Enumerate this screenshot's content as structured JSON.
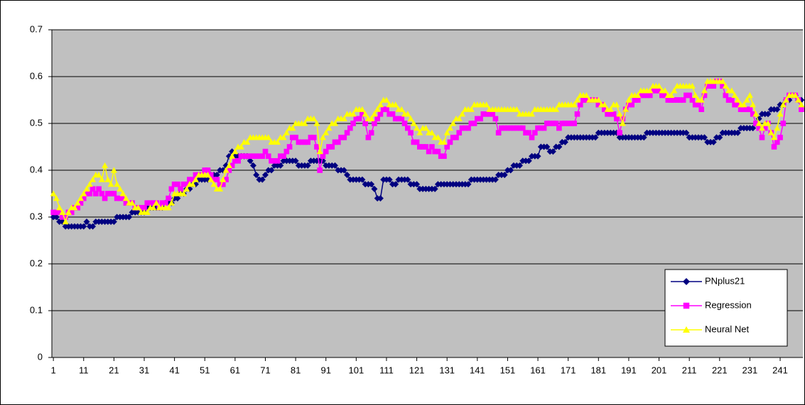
{
  "chart_data": {
    "type": "line",
    "x": [
      1,
      2,
      3,
      4,
      5,
      6,
      7,
      8,
      9,
      10,
      11,
      12,
      13,
      14,
      15,
      16,
      17,
      18,
      19,
      20,
      21,
      22,
      23,
      24,
      25,
      26,
      27,
      28,
      29,
      30,
      31,
      32,
      33,
      34,
      35,
      36,
      37,
      38,
      39,
      40,
      41,
      42,
      43,
      44,
      45,
      46,
      47,
      48,
      49,
      50,
      51,
      52,
      53,
      54,
      55,
      56,
      57,
      58,
      59,
      60,
      61,
      62,
      63,
      64,
      65,
      66,
      67,
      68,
      69,
      70,
      71,
      72,
      73,
      74,
      75,
      76,
      77,
      78,
      79,
      80,
      81,
      82,
      83,
      84,
      85,
      86,
      87,
      88,
      89,
      90,
      91,
      92,
      93,
      94,
      95,
      96,
      97,
      98,
      99,
      100,
      101,
      102,
      103,
      104,
      105,
      106,
      107,
      108,
      109,
      110,
      111,
      112,
      113,
      114,
      115,
      116,
      117,
      118,
      119,
      120,
      121,
      122,
      123,
      124,
      125,
      126,
      127,
      128,
      129,
      130,
      131,
      132,
      133,
      134,
      135,
      136,
      137,
      138,
      139,
      140,
      141,
      142,
      143,
      144,
      145,
      146,
      147,
      148,
      149,
      150,
      151,
      152,
      153,
      154,
      155,
      156,
      157,
      158,
      159,
      160,
      161,
      162,
      163,
      164,
      165,
      166,
      167,
      168,
      169,
      170,
      171,
      172,
      173,
      174,
      175,
      176,
      177,
      178,
      179,
      180,
      181,
      182,
      183,
      184,
      185,
      186,
      187,
      188,
      189,
      190,
      191,
      192,
      193,
      194,
      195,
      196,
      197,
      198,
      199,
      200,
      201,
      202,
      203,
      204,
      205,
      206,
      207,
      208,
      209,
      210,
      211,
      212,
      213,
      214,
      215,
      216,
      217,
      218,
      219,
      220,
      221,
      222,
      223,
      224,
      225,
      226,
      227,
      228,
      229,
      230,
      231,
      232,
      233,
      234,
      235,
      236,
      237,
      238,
      239,
      240,
      241,
      242,
      243,
      244,
      245,
      246,
      247,
      248
    ],
    "xlim": [
      0.5,
      248.5
    ],
    "xticks": [
      1,
      11,
      21,
      31,
      41,
      51,
      61,
      71,
      81,
      91,
      101,
      111,
      121,
      131,
      141,
      151,
      161,
      171,
      181,
      191,
      201,
      211,
      221,
      231,
      241
    ],
    "ylim": [
      0,
      0.7
    ],
    "yticks": [
      0,
      0.1,
      0.2,
      0.3,
      0.4,
      0.5,
      0.6,
      0.7
    ],
    "grid": true,
    "legend": "lower right",
    "series": [
      {
        "name": "PNplus21",
        "color": "#000080",
        "marker": "diamond",
        "values": [
          0.3,
          0.3,
          0.29,
          0.29,
          0.28,
          0.28,
          0.28,
          0.28,
          0.28,
          0.28,
          0.28,
          0.29,
          0.28,
          0.28,
          0.29,
          0.29,
          0.29,
          0.29,
          0.29,
          0.29,
          0.29,
          0.3,
          0.3,
          0.3,
          0.3,
          0.3,
          0.31,
          0.31,
          0.31,
          0.31,
          0.31,
          0.32,
          0.32,
          0.32,
          0.32,
          0.32,
          0.32,
          0.33,
          0.33,
          0.33,
          0.34,
          0.34,
          0.35,
          0.35,
          0.36,
          0.36,
          0.37,
          0.37,
          0.38,
          0.38,
          0.38,
          0.38,
          0.39,
          0.39,
          0.39,
          0.4,
          0.4,
          0.41,
          0.43,
          0.44,
          0.43,
          0.43,
          0.43,
          0.43,
          0.43,
          0.42,
          0.41,
          0.39,
          0.38,
          0.38,
          0.39,
          0.4,
          0.4,
          0.41,
          0.41,
          0.41,
          0.42,
          0.42,
          0.42,
          0.42,
          0.42,
          0.41,
          0.41,
          0.41,
          0.41,
          0.42,
          0.42,
          0.42,
          0.42,
          0.42,
          0.41,
          0.41,
          0.41,
          0.41,
          0.4,
          0.4,
          0.4,
          0.39,
          0.38,
          0.38,
          0.38,
          0.38,
          0.38,
          0.37,
          0.37,
          0.37,
          0.36,
          0.34,
          0.34,
          0.38,
          0.38,
          0.38,
          0.37,
          0.37,
          0.38,
          0.38,
          0.38,
          0.38,
          0.37,
          0.37,
          0.37,
          0.36,
          0.36,
          0.36,
          0.36,
          0.36,
          0.36,
          0.37,
          0.37,
          0.37,
          0.37,
          0.37,
          0.37,
          0.37,
          0.37,
          0.37,
          0.37,
          0.37,
          0.38,
          0.38,
          0.38,
          0.38,
          0.38,
          0.38,
          0.38,
          0.38,
          0.38,
          0.39,
          0.39,
          0.39,
          0.4,
          0.4,
          0.41,
          0.41,
          0.41,
          0.42,
          0.42,
          0.42,
          0.43,
          0.43,
          0.43,
          0.45,
          0.45,
          0.45,
          0.44,
          0.44,
          0.45,
          0.45,
          0.46,
          0.46,
          0.47,
          0.47,
          0.47,
          0.47,
          0.47,
          0.47,
          0.47,
          0.47,
          0.47,
          0.47,
          0.48,
          0.48,
          0.48,
          0.48,
          0.48,
          0.48,
          0.48,
          0.47,
          0.47,
          0.47,
          0.47,
          0.47,
          0.47,
          0.47,
          0.47,
          0.47,
          0.48,
          0.48,
          0.48,
          0.48,
          0.48,
          0.48,
          0.48,
          0.48,
          0.48,
          0.48,
          0.48,
          0.48,
          0.48,
          0.48,
          0.47,
          0.47,
          0.47,
          0.47,
          0.47,
          0.47,
          0.46,
          0.46,
          0.46,
          0.47,
          0.47,
          0.48,
          0.48,
          0.48,
          0.48,
          0.48,
          0.48,
          0.49,
          0.49,
          0.49,
          0.49,
          0.49,
          0.5,
          0.51,
          0.52,
          0.52,
          0.52,
          0.53,
          0.53,
          0.53,
          0.54,
          0.54,
          0.55,
          0.55,
          0.56,
          0.56,
          0.55,
          0.55
        ]
      },
      {
        "name": "Regression",
        "color": "#FF00FF",
        "marker": "square",
        "values": [
          0.31,
          0.31,
          0.31,
          0.3,
          0.3,
          0.31,
          0.31,
          0.32,
          0.32,
          0.33,
          0.34,
          0.35,
          0.35,
          0.36,
          0.35,
          0.36,
          0.35,
          0.34,
          0.35,
          0.35,
          0.35,
          0.34,
          0.34,
          0.34,
          0.33,
          0.33,
          0.33,
          0.32,
          0.32,
          0.32,
          0.32,
          0.33,
          0.33,
          0.33,
          0.33,
          0.32,
          0.33,
          0.33,
          0.34,
          0.36,
          0.37,
          0.37,
          0.36,
          0.37,
          0.37,
          0.38,
          0.38,
          0.39,
          0.39,
          0.39,
          0.4,
          0.4,
          0.39,
          0.38,
          0.38,
          0.37,
          0.37,
          0.38,
          0.4,
          0.41,
          0.42,
          0.42,
          0.43,
          0.43,
          0.43,
          0.43,
          0.43,
          0.43,
          0.43,
          0.43,
          0.44,
          0.43,
          0.42,
          0.42,
          0.42,
          0.43,
          0.43,
          0.44,
          0.45,
          0.47,
          0.47,
          0.46,
          0.46,
          0.46,
          0.46,
          0.47,
          0.47,
          0.45,
          0.4,
          0.43,
          0.44,
          0.45,
          0.45,
          0.46,
          0.46,
          0.47,
          0.47,
          0.48,
          0.49,
          0.5,
          0.51,
          0.51,
          0.52,
          0.5,
          0.47,
          0.48,
          0.5,
          0.51,
          0.52,
          0.53,
          0.53,
          0.52,
          0.52,
          0.51,
          0.51,
          0.51,
          0.5,
          0.49,
          0.48,
          0.46,
          0.46,
          0.45,
          0.45,
          0.45,
          0.44,
          0.45,
          0.44,
          0.44,
          0.43,
          0.43,
          0.45,
          0.46,
          0.47,
          0.47,
          0.48,
          0.49,
          0.49,
          0.49,
          0.5,
          0.5,
          0.51,
          0.51,
          0.52,
          0.52,
          0.52,
          0.52,
          0.51,
          0.48,
          0.49,
          0.49,
          0.49,
          0.49,
          0.49,
          0.49,
          0.49,
          0.49,
          0.48,
          0.48,
          0.47,
          0.48,
          0.49,
          0.49,
          0.49,
          0.5,
          0.5,
          0.5,
          0.5,
          0.49,
          0.5,
          0.5,
          0.5,
          0.5,
          0.5,
          0.52,
          0.54,
          0.55,
          0.55,
          0.55,
          0.55,
          0.55,
          0.54,
          0.54,
          0.53,
          0.52,
          0.52,
          0.52,
          0.51,
          0.48,
          0.51,
          0.53,
          0.54,
          0.54,
          0.55,
          0.55,
          0.56,
          0.56,
          0.56,
          0.56,
          0.57,
          0.57,
          0.57,
          0.56,
          0.56,
          0.55,
          0.55,
          0.55,
          0.55,
          0.55,
          0.55,
          0.56,
          0.56,
          0.55,
          0.54,
          0.54,
          0.53,
          0.56,
          0.58,
          0.58,
          0.58,
          0.59,
          0.59,
          0.58,
          0.56,
          0.55,
          0.55,
          0.54,
          0.54,
          0.53,
          0.53,
          0.53,
          0.53,
          0.52,
          0.5,
          0.49,
          0.47,
          0.49,
          0.5,
          0.48,
          0.45,
          0.46,
          0.47,
          0.5,
          0.55,
          0.56,
          0.56,
          0.56,
          0.55,
          0.53
        ]
      },
      {
        "name": "Neural Net",
        "color": "#FFFF00",
        "marker": "triangle",
        "values": [
          0.35,
          0.34,
          0.32,
          0.31,
          0.29,
          0.31,
          0.32,
          0.32,
          0.33,
          0.34,
          0.35,
          0.36,
          0.37,
          0.38,
          0.39,
          0.39,
          0.38,
          0.41,
          0.38,
          0.37,
          0.4,
          0.37,
          0.36,
          0.35,
          0.34,
          0.33,
          0.33,
          0.32,
          0.32,
          0.31,
          0.31,
          0.31,
          0.32,
          0.32,
          0.33,
          0.32,
          0.32,
          0.32,
          0.32,
          0.33,
          0.35,
          0.35,
          0.35,
          0.35,
          0.36,
          0.37,
          0.37,
          0.38,
          0.39,
          0.39,
          0.39,
          0.39,
          0.38,
          0.37,
          0.36,
          0.36,
          0.38,
          0.4,
          0.41,
          0.43,
          0.44,
          0.45,
          0.45,
          0.46,
          0.46,
          0.47,
          0.47,
          0.47,
          0.47,
          0.47,
          0.47,
          0.47,
          0.46,
          0.46,
          0.46,
          0.47,
          0.47,
          0.48,
          0.49,
          0.49,
          0.5,
          0.5,
          0.5,
          0.5,
          0.51,
          0.51,
          0.51,
          0.5,
          0.44,
          0.47,
          0.48,
          0.49,
          0.5,
          0.5,
          0.51,
          0.51,
          0.51,
          0.52,
          0.52,
          0.52,
          0.53,
          0.53,
          0.53,
          0.52,
          0.51,
          0.51,
          0.52,
          0.53,
          0.54,
          0.55,
          0.55,
          0.54,
          0.54,
          0.54,
          0.53,
          0.53,
          0.52,
          0.52,
          0.51,
          0.5,
          0.49,
          0.48,
          0.49,
          0.49,
          0.48,
          0.48,
          0.47,
          0.47,
          0.46,
          0.46,
          0.48,
          0.49,
          0.5,
          0.51,
          0.51,
          0.52,
          0.53,
          0.53,
          0.53,
          0.54,
          0.54,
          0.54,
          0.54,
          0.54,
          0.53,
          0.53,
          0.53,
          0.53,
          0.53,
          0.53,
          0.53,
          0.53,
          0.53,
          0.53,
          0.52,
          0.52,
          0.52,
          0.52,
          0.52,
          0.53,
          0.53,
          0.53,
          0.53,
          0.53,
          0.53,
          0.53,
          0.53,
          0.54,
          0.54,
          0.54,
          0.54,
          0.54,
          0.54,
          0.55,
          0.56,
          0.56,
          0.56,
          0.55,
          0.55,
          0.55,
          0.55,
          0.54,
          0.54,
          0.53,
          0.53,
          0.54,
          0.54,
          0.52,
          0.5,
          0.53,
          0.55,
          0.56,
          0.56,
          0.56,
          0.57,
          0.57,
          0.57,
          0.57,
          0.58,
          0.58,
          0.58,
          0.57,
          0.57,
          0.56,
          0.56,
          0.57,
          0.58,
          0.58,
          0.58,
          0.58,
          0.58,
          0.58,
          0.56,
          0.55,
          0.55,
          0.57,
          0.59,
          0.59,
          0.59,
          0.59,
          0.59,
          0.59,
          0.58,
          0.57,
          0.57,
          0.56,
          0.55,
          0.54,
          0.54,
          0.55,
          0.56,
          0.54,
          0.52,
          0.5,
          0.49,
          0.5,
          0.5,
          0.48,
          0.47,
          0.49,
          0.52,
          0.54,
          0.55,
          0.56,
          0.56,
          0.56,
          0.55,
          0.54
        ]
      }
    ]
  }
}
